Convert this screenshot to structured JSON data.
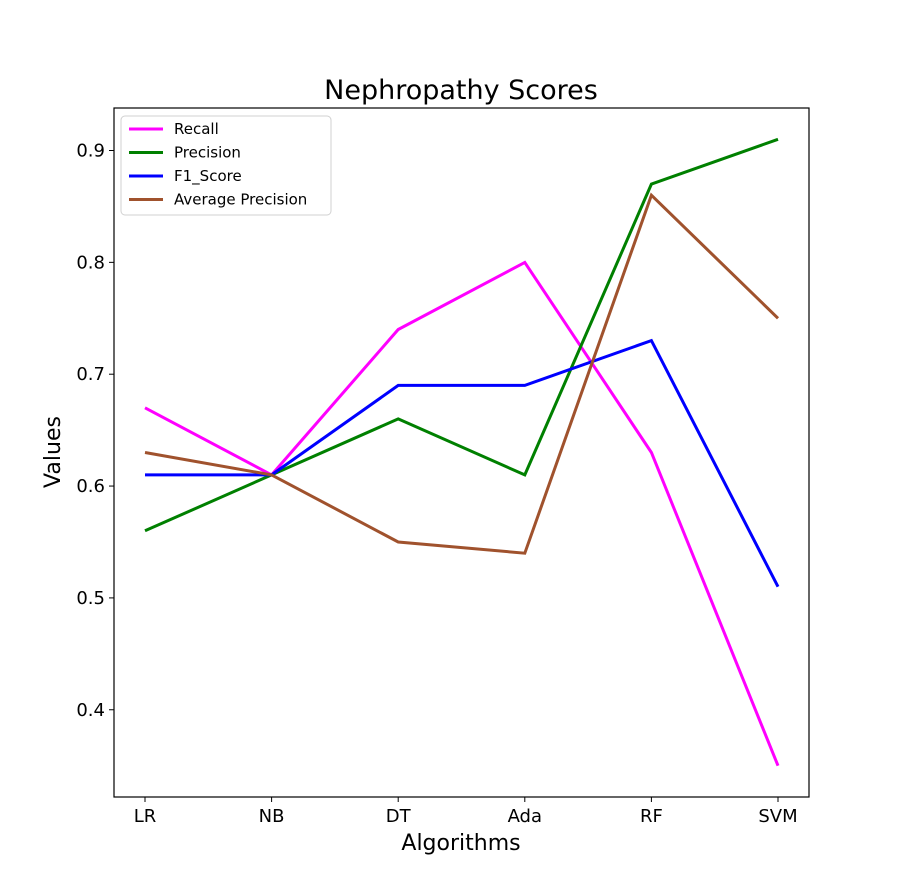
{
  "chart_data": {
    "type": "line",
    "title": "Nephropathy Scores",
    "xlabel": "Algorithms",
    "ylabel": "Values",
    "categories": [
      "LR",
      "NB",
      "DT",
      "Ada",
      "RF",
      "SVM"
    ],
    "ylim": [
      0.322,
      0.938
    ],
    "yticks": [
      "0.4",
      "0.5",
      "0.6",
      "0.7",
      "0.8",
      "0.9"
    ],
    "grid": false,
    "legend_position": "top-left",
    "series": [
      {
        "name": "Recall",
        "color": "#ff00ff",
        "values": [
          0.67,
          0.61,
          0.74,
          0.8,
          0.63,
          0.35
        ]
      },
      {
        "name": "Precision",
        "color": "#008000",
        "values": [
          0.56,
          0.61,
          0.66,
          0.61,
          0.87,
          0.91
        ]
      },
      {
        "name": "F1_Score",
        "color": "#0000ff",
        "values": [
          0.61,
          0.61,
          0.69,
          0.69,
          0.73,
          0.51
        ]
      },
      {
        "name": "Average Precision",
        "color": "#a0522d",
        "values": [
          0.63,
          0.61,
          0.55,
          0.54,
          0.86,
          0.75
        ]
      }
    ]
  }
}
